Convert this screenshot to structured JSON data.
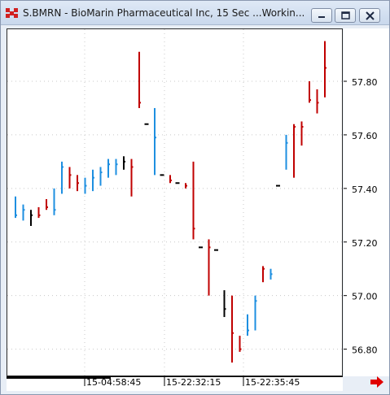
{
  "window": {
    "title": "S.BMRN - BioMarin Pharmaceutical Inc, 15 Sec ...Workin...",
    "buttons": {
      "minimize": "minimize",
      "restore": "restore",
      "close": "close"
    }
  },
  "icons": {
    "app": "app-logo-icon",
    "minimize": "minimize-icon",
    "restore": "restore-icon",
    "close": "close-icon",
    "scroll_right": "arrow-right-icon"
  },
  "colors": {
    "up_bar": "#1e8fe0",
    "down_bar": "#c00000",
    "neutral_bar": "#000000",
    "grid": "#c8c8c8",
    "scroll_arrow": "#e00000"
  },
  "chart_data": {
    "type": "ohlc",
    "title": "",
    "price_ticks": [
      "57.80",
      "57.60",
      "57.40",
      "57.20",
      "57.00",
      "56.80"
    ],
    "time_ticks": [
      "15-04:58:45",
      "15-22:32:15",
      "15-22:35:45"
    ],
    "ylim": [
      56.75,
      57.98
    ],
    "grid": true,
    "bars": [
      {
        "low": 57.29,
        "high": 57.37,
        "close": 57.3,
        "dir": "up"
      },
      {
        "low": 57.28,
        "high": 57.34,
        "close": 57.32,
        "dir": "up"
      },
      {
        "low": 57.26,
        "high": 57.32,
        "close": 57.3,
        "dir": "neutral"
      },
      {
        "low": 57.29,
        "high": 57.33,
        "close": 57.3,
        "dir": "down"
      },
      {
        "low": 57.32,
        "high": 57.36,
        "close": 57.33,
        "dir": "down"
      },
      {
        "low": 57.3,
        "high": 57.4,
        "close": 57.32,
        "dir": "up"
      },
      {
        "low": 57.38,
        "high": 57.5,
        "close": 57.48,
        "dir": "up"
      },
      {
        "low": 57.4,
        "high": 57.48,
        "close": 57.45,
        "dir": "down"
      },
      {
        "low": 57.39,
        "high": 57.45,
        "close": 57.42,
        "dir": "down"
      },
      {
        "low": 57.38,
        "high": 57.44,
        "close": 57.41,
        "dir": "up"
      },
      {
        "low": 57.39,
        "high": 57.47,
        "close": 57.44,
        "dir": "up"
      },
      {
        "low": 57.41,
        "high": 57.48,
        "close": 57.46,
        "dir": "up"
      },
      {
        "low": 57.44,
        "high": 57.51,
        "close": 57.49,
        "dir": "up"
      },
      {
        "low": 57.45,
        "high": 57.51,
        "close": 57.49,
        "dir": "up"
      },
      {
        "low": 57.47,
        "high": 57.52,
        "close": 57.5,
        "dir": "neutral"
      },
      {
        "low": 57.37,
        "high": 57.51,
        "close": 57.48,
        "dir": "down"
      },
      {
        "low": 57.7,
        "high": 57.91,
        "close": 57.72,
        "dir": "down"
      },
      {
        "low": 57.64,
        "high": 57.64,
        "close": 57.64,
        "dir": "neutral"
      },
      {
        "low": 57.45,
        "high": 57.7,
        "close": 57.59,
        "dir": "up"
      },
      {
        "low": 57.45,
        "high": 57.45,
        "close": 57.45,
        "dir": "neutral"
      },
      {
        "low": 57.42,
        "high": 57.45,
        "close": 57.43,
        "dir": "down"
      },
      {
        "low": 57.42,
        "high": 57.42,
        "close": 57.42,
        "dir": "neutral"
      },
      {
        "low": 57.4,
        "high": 57.42,
        "close": 57.41,
        "dir": "down"
      },
      {
        "low": 57.21,
        "high": 57.5,
        "close": 57.25,
        "dir": "down"
      },
      {
        "low": 57.18,
        "high": 57.18,
        "close": 57.18,
        "dir": "neutral"
      },
      {
        "low": 57.0,
        "high": 57.21,
        "close": 57.18,
        "dir": "down"
      },
      {
        "low": 57.17,
        "high": 57.17,
        "close": 57.17,
        "dir": "neutral"
      },
      {
        "low": 56.92,
        "high": 57.02,
        "close": 56.95,
        "dir": "neutral"
      },
      {
        "low": 56.75,
        "high": 57.0,
        "close": 56.86,
        "dir": "down"
      },
      {
        "low": 56.79,
        "high": 56.85,
        "close": 56.8,
        "dir": "down"
      },
      {
        "low": 56.85,
        "high": 56.93,
        "close": 56.87,
        "dir": "up"
      },
      {
        "low": 56.87,
        "high": 57.0,
        "close": 56.98,
        "dir": "up"
      },
      {
        "low": 57.05,
        "high": 57.11,
        "close": 57.1,
        "dir": "down"
      },
      {
        "low": 57.06,
        "high": 57.1,
        "close": 57.08,
        "dir": "up"
      },
      {
        "low": 57.41,
        "high": 57.41,
        "close": 57.41,
        "dir": "neutral"
      },
      {
        "low": 57.47,
        "high": 57.6,
        "close": 57.57,
        "dir": "up"
      },
      {
        "low": 57.44,
        "high": 57.64,
        "close": 57.63,
        "dir": "down"
      },
      {
        "low": 57.56,
        "high": 57.65,
        "close": 57.63,
        "dir": "down"
      },
      {
        "low": 57.72,
        "high": 57.8,
        "close": 57.73,
        "dir": "down"
      },
      {
        "low": 57.68,
        "high": 57.77,
        "close": 57.72,
        "dir": "down"
      },
      {
        "low": 57.74,
        "high": 57.95,
        "close": 57.85,
        "dir": "down"
      }
    ]
  }
}
